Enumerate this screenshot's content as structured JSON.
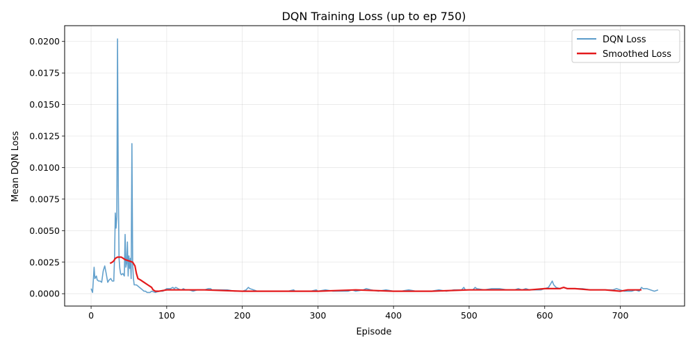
{
  "chart_data": {
    "type": "line",
    "title": "DQN Training Loss (up to ep 750)",
    "xlabel": "Episode",
    "ylabel": "Mean DQN Loss",
    "xlim": [
      -35,
      785
    ],
    "ylim": [
      -0.00098,
      0.02125
    ],
    "x_ticks": [
      0,
      100,
      200,
      300,
      400,
      500,
      600,
      700
    ],
    "x_tick_labels": [
      "0",
      "100",
      "200",
      "300",
      "400",
      "500",
      "600",
      "700"
    ],
    "y_ticks": [
      0.0,
      0.0025,
      0.005,
      0.0075,
      0.01,
      0.0125,
      0.015,
      0.0175,
      0.02
    ],
    "y_tick_labels": [
      "0.0000",
      "0.0025",
      "0.0050",
      "0.0075",
      "0.0100",
      "0.0125",
      "0.0150",
      "0.0175",
      "0.0200"
    ],
    "grid": true,
    "legend_position": "top-right",
    "series": [
      {
        "name": "DQN Loss",
        "color": "#5a9bc9",
        "x": [
          0,
          2,
          4,
          5,
          7,
          8,
          10,
          12,
          14,
          16,
          18,
          20,
          22,
          24,
          26,
          28,
          30,
          31,
          32,
          33,
          34,
          35,
          36,
          37,
          38,
          39,
          40,
          42,
          44,
          45,
          46,
          47,
          48,
          49,
          50,
          51,
          52,
          53,
          54,
          55,
          56,
          57,
          58,
          60,
          62,
          64,
          66,
          68,
          70,
          72,
          74,
          76,
          78,
          80,
          85,
          90,
          95,
          100,
          105,
          108,
          110,
          112,
          115,
          118,
          120,
          122,
          125,
          130,
          135,
          140,
          145,
          150,
          155,
          158,
          160,
          165,
          170,
          180,
          190,
          200,
          205,
          208,
          210,
          215,
          220,
          230,
          240,
          250,
          260,
          268,
          270,
          280,
          290,
          298,
          300,
          310,
          320,
          330,
          340,
          345,
          350,
          360,
          364,
          370,
          380,
          390,
          400,
          410,
          420,
          430,
          440,
          450,
          460,
          470,
          480,
          490,
          493,
          495,
          500,
          505,
          508,
          510,
          520,
          530,
          540,
          550,
          560,
          565,
          570,
          575,
          580,
          590,
          595,
          600,
          605,
          608,
          610,
          612,
          615,
          620,
          625,
          630,
          640,
          650,
          660,
          670,
          680,
          690,
          695,
          700,
          705,
          710,
          715,
          720,
          725,
          728,
          730,
          735,
          740,
          745,
          750
        ],
        "y": [
          0.0004,
          0.0001,
          0.0021,
          0.0012,
          0.0014,
          0.0011,
          0.001,
          0.001,
          0.0009,
          0.0018,
          0.0022,
          0.0016,
          0.0009,
          0.0011,
          0.0012,
          0.001,
          0.001,
          0.0028,
          0.0064,
          0.0052,
          0.0061,
          0.0202,
          0.0085,
          0.0028,
          0.002,
          0.0016,
          0.0015,
          0.0016,
          0.0014,
          0.0047,
          0.0021,
          0.0024,
          0.0041,
          0.0014,
          0.003,
          0.002,
          0.0028,
          0.0012,
          0.0119,
          0.0023,
          0.0012,
          0.0007,
          0.0007,
          0.0007,
          0.0006,
          0.0005,
          0.0004,
          0.0003,
          0.0002,
          0.0002,
          0.0001,
          0.0001,
          0.0001,
          0.0002,
          0.0001,
          0.0002,
          0.0002,
          0.0004,
          0.0004,
          0.0005,
          0.0004,
          0.0005,
          0.0004,
          0.0003,
          0.0003,
          0.0004,
          0.0003,
          0.0003,
          0.0002,
          0.0003,
          0.0003,
          0.0003,
          0.0004,
          0.0004,
          0.0003,
          0.0003,
          0.0003,
          0.0003,
          0.0002,
          0.0002,
          0.0003,
          0.0005,
          0.0004,
          0.0003,
          0.0002,
          0.0002,
          0.0002,
          0.0002,
          0.0002,
          0.0003,
          0.0002,
          0.0002,
          0.0002,
          0.0003,
          0.0002,
          0.0003,
          0.0002,
          0.0002,
          0.0002,
          0.0003,
          0.0002,
          0.0003,
          0.0004,
          0.0003,
          0.0002,
          0.0003,
          0.0002,
          0.0002,
          0.0003,
          0.0002,
          0.0002,
          0.0002,
          0.0003,
          0.0002,
          0.0003,
          0.0003,
          0.0005,
          0.0003,
          0.0003,
          0.0003,
          0.0005,
          0.0004,
          0.0003,
          0.0004,
          0.0004,
          0.0003,
          0.0003,
          0.0004,
          0.0003,
          0.0004,
          0.0003,
          0.0003,
          0.0003,
          0.0004,
          0.0005,
          0.0008,
          0.001,
          0.0007,
          0.0005,
          0.0004,
          0.0005,
          0.0004,
          0.0004,
          0.0004,
          0.0003,
          0.0003,
          0.0003,
          0.0003,
          0.0004,
          0.0003,
          0.0002,
          0.0002,
          0.0002,
          0.0003,
          0.0002,
          0.0005,
          0.0004,
          0.0004,
          0.0003,
          0.0002,
          0.0003
        ]
      },
      {
        "name": "Smoothed Loss",
        "color": "#e31a1c",
        "x": [
          25,
          28,
          30,
          32,
          35,
          38,
          40,
          45,
          50,
          55,
          58,
          60,
          62,
          65,
          70,
          75,
          80,
          82,
          85,
          90,
          100,
          120,
          150,
          200,
          250,
          300,
          350,
          400,
          450,
          500,
          550,
          580,
          600,
          620,
          625,
          630,
          640,
          660,
          680,
          700,
          710,
          720,
          728
        ],
        "y": [
          0.0024,
          0.0025,
          0.0026,
          0.0028,
          0.0029,
          0.0029,
          0.0029,
          0.0027,
          0.0026,
          0.0025,
          0.0022,
          0.0016,
          0.0012,
          0.0011,
          0.0009,
          0.0007,
          0.0005,
          0.0003,
          0.0002,
          0.0002,
          0.0003,
          0.0003,
          0.0003,
          0.0002,
          0.0002,
          0.0002,
          0.0003,
          0.0002,
          0.0002,
          0.0003,
          0.0003,
          0.0003,
          0.0004,
          0.0004,
          0.0005,
          0.0004,
          0.0004,
          0.0003,
          0.0003,
          0.0002,
          0.0003,
          0.0003,
          0.0003
        ]
      }
    ]
  }
}
